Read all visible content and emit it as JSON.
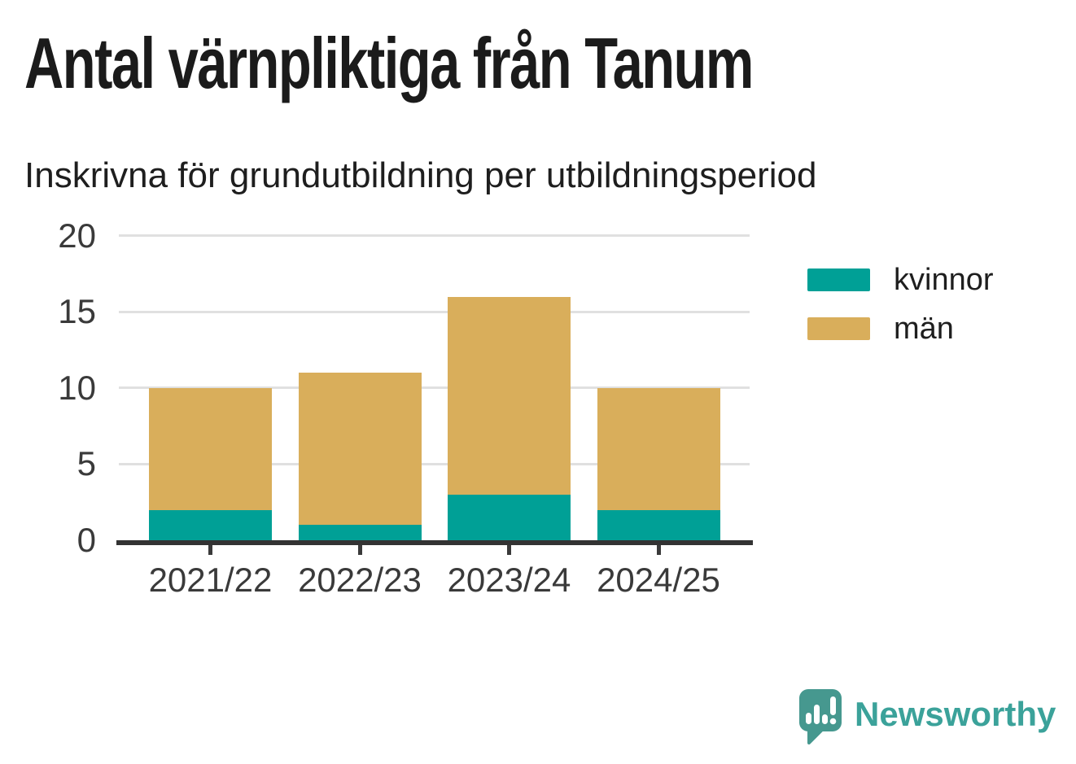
{
  "header": {
    "title": "Antal värnpliktiga från Tanum",
    "subtitle": "Inskrivna för grundutbildning per utbildningsperiod"
  },
  "chart_data": {
    "type": "bar",
    "stacked": true,
    "categories": [
      "2021/22",
      "2022/23",
      "2023/24",
      "2024/25"
    ],
    "series": [
      {
        "name": "kvinnor",
        "color": "#00a096",
        "values": [
          2,
          1,
          3,
          2
        ]
      },
      {
        "name": "män",
        "color": "#d9ae5b",
        "values": [
          8,
          10,
          13,
          8
        ]
      }
    ],
    "totals": [
      10,
      11,
      16,
      10
    ],
    "ylabel": "",
    "xlabel": "",
    "ylim": [
      0,
      20
    ],
    "yticks": [
      0,
      5,
      10,
      15,
      20
    ],
    "grid": "horizontal",
    "legend_position": "right"
  },
  "branding": {
    "logo_text": "Newsworthy",
    "icon_color": "#46988f",
    "text_color": "#3ba29a"
  }
}
